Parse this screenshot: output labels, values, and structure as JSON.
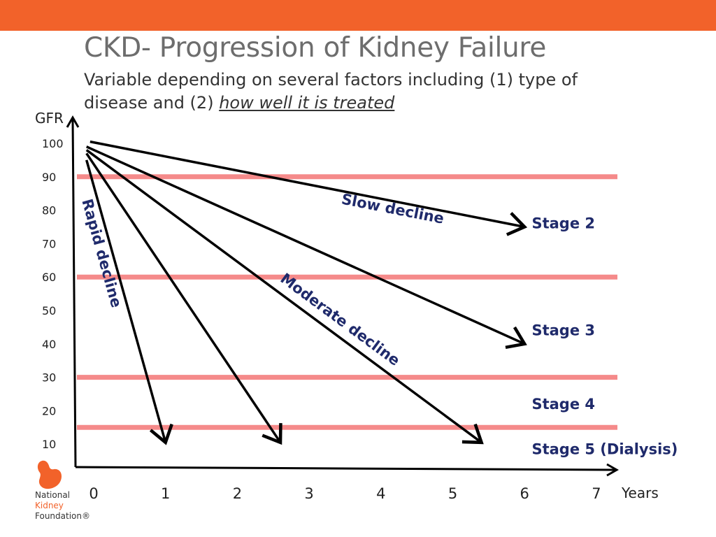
{
  "slide": {
    "title": "CKD- Progression of Kidney Failure",
    "subtitle_plain": "Variable depending on several factors including (1) type of disease and (2) ",
    "subtitle_emphasis": "how well it is treated",
    "accent_color": "#f2622a"
  },
  "logo": {
    "icon": "kidney-icon",
    "line1": "National",
    "line2": "Kidney",
    "line3": "Foundation®"
  },
  "chart_data": {
    "type": "line",
    "xlabel": "Years",
    "ylabel": "GFR",
    "x_ticks": [
      0,
      1,
      2,
      3,
      4,
      5,
      6,
      7
    ],
    "y_ticks": [
      100,
      90,
      80,
      70,
      60,
      50,
      40,
      30,
      20,
      10
    ],
    "thresholds": [
      90,
      60,
      30,
      15
    ],
    "threshold_color": "#f58a8a",
    "series": [
      {
        "label": "Rapid decline",
        "x": [
          -0.1,
          1.0
        ],
        "y": [
          95,
          10.5
        ]
      },
      {
        "label": "",
        "x": [
          -0.1,
          2.6
        ],
        "y": [
          97,
          10.5
        ]
      },
      {
        "label": "Moderate decline",
        "x": [
          -0.1,
          5.4
        ],
        "y": [
          98,
          10.5
        ]
      },
      {
        "label": "",
        "x": [
          -0.1,
          6.0
        ],
        "y": [
          99,
          40
        ]
      },
      {
        "label": "Slow decline",
        "x": [
          -0.05,
          6.0
        ],
        "y": [
          100.5,
          75
        ]
      }
    ],
    "stages": [
      {
        "label": "Stage 2",
        "y": 76
      },
      {
        "label": "Stage 3",
        "y": 44
      },
      {
        "label": "Stage 4",
        "y": 22
      },
      {
        "label": "Stage 5 (Dialysis)",
        "y": 8.5
      }
    ],
    "stage_label_x": 6.1,
    "grid": false
  }
}
